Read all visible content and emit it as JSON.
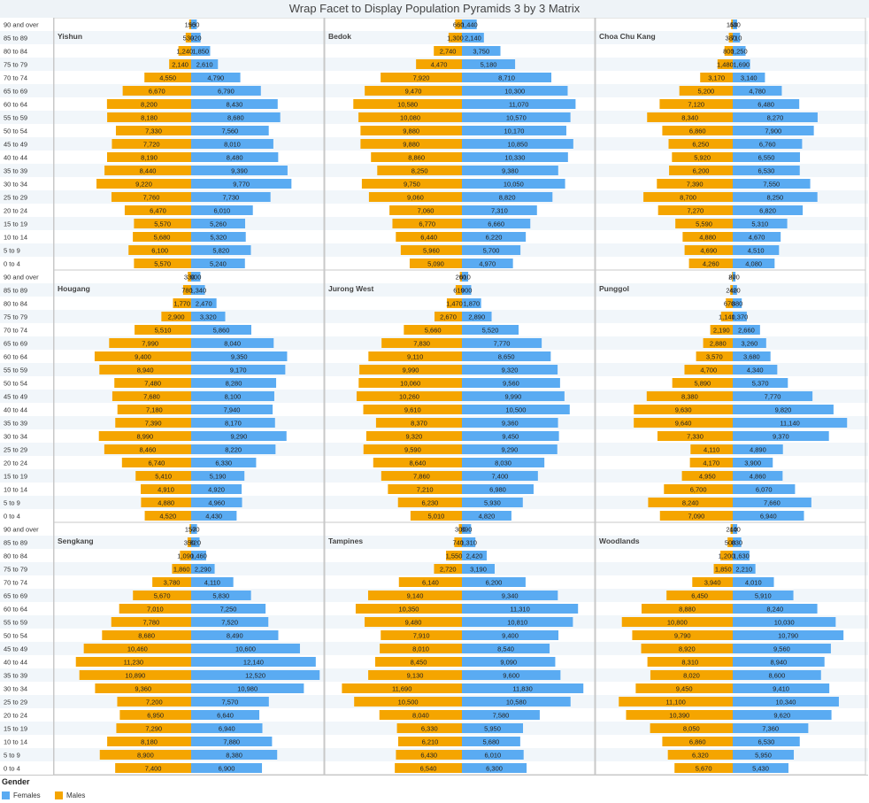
{
  "title": "Wrap Facet to Display Population Pyramids 3 by 3 Matrix",
  "chart_data": {
    "type": "bar",
    "orientation": "horizontal-diverging",
    "age_groups": [
      "90 and over",
      "85 to 89",
      "80 to 84",
      "75 to 79",
      "70 to 74",
      "65 to 69",
      "60 to 64",
      "55 to 59",
      "50 to 54",
      "45 to 49",
      "40 to 44",
      "35 to 39",
      "30 to 34",
      "25 to 29",
      "20 to 24",
      "15 to 19",
      "10 to 14",
      "5 to 9",
      "0 to 4"
    ],
    "colors": {
      "Females": "#5aabf2",
      "Males": "#f5a500"
    },
    "facets": [
      {
        "name": "Yishun",
        "males": [
          190,
          530,
          1240,
          2140,
          4550,
          6670,
          8200,
          8180,
          7330,
          7720,
          8190,
          8440,
          9220,
          7760,
          6470,
          5570,
          5680,
          6100,
          5570
        ],
        "females": [
          550,
          920,
          1850,
          2610,
          4790,
          6790,
          8430,
          8680,
          7560,
          8010,
          8480,
          9390,
          9770,
          7730,
          6010,
          5260,
          5320,
          5820,
          5240
        ]
      },
      {
        "name": "Bedok",
        "males": [
          660,
          1300,
          2740,
          4470,
          7920,
          9470,
          10580,
          10080,
          9880,
          9880,
          8860,
          8250,
          9750,
          9060,
          7060,
          6770,
          6440,
          5960,
          5090
        ],
        "females": [
          1440,
          2140,
          3750,
          5180,
          8710,
          10300,
          11070,
          10570,
          10170,
          10850,
          10330,
          9380,
          10050,
          8820,
          7310,
          6660,
          6220,
          5700,
          4970
        ]
      },
      {
        "name": "Choa Chu Kang",
        "males": [
          150,
          380,
          800,
          1480,
          3170,
          5200,
          7120,
          8340,
          6860,
          6250,
          5920,
          6200,
          7390,
          8700,
          7270,
          5590,
          4880,
          4690,
          4260
        ],
        "females": [
          430,
          710,
          1250,
          1690,
          3140,
          4780,
          6480,
          8270,
          7900,
          6760,
          6550,
          6530,
          7550,
          8250,
          6820,
          5310,
          4670,
          4510,
          4080
        ]
      },
      {
        "name": "Hougang",
        "males": [
          330,
          780,
          1770,
          2900,
          5510,
          7990,
          9400,
          8940,
          7480,
          7680,
          7180,
          7390,
          8990,
          8460,
          6740,
          5410,
          4910,
          4880,
          4520
        ],
        "females": [
          900,
          1340,
          2470,
          3320,
          5860,
          8040,
          9350,
          9170,
          8280,
          8100,
          7940,
          8170,
          9290,
          8220,
          6330,
          5190,
          4920,
          4960,
          4430
        ]
      },
      {
        "name": "Jurong West",
        "males": [
          200,
          610,
          1470,
          2670,
          5660,
          7830,
          9110,
          9990,
          10060,
          10260,
          9610,
          8370,
          9320,
          9590,
          8640,
          7860,
          7210,
          6230,
          5010
        ],
        "females": [
          610,
          900,
          1870,
          2890,
          5520,
          7770,
          8650,
          9320,
          9560,
          9990,
          10500,
          9360,
          9450,
          9290,
          8030,
          7400,
          6980,
          5930,
          4820
        ]
      },
      {
        "name": "Punggol",
        "males": [
          80,
          240,
          670,
          1140,
          2190,
          2880,
          3570,
          4700,
          5890,
          8380,
          9630,
          9640,
          7330,
          4110,
          4170,
          4950,
          6700,
          8240,
          7090
        ],
        "females": [
          270,
          420,
          880,
          1370,
          2660,
          3260,
          3680,
          4340,
          5370,
          7770,
          9820,
          11140,
          9370,
          4890,
          3900,
          4860,
          6070,
          7660,
          6940
        ]
      },
      {
        "name": "Sengkang",
        "males": [
          150,
          350,
          1090,
          1860,
          3780,
          5670,
          7010,
          7780,
          8680,
          10460,
          11230,
          10890,
          9360,
          7200,
          6950,
          7290,
          8180,
          8900,
          7400
        ],
        "females": [
          570,
          820,
          1460,
          2290,
          4110,
          5830,
          7250,
          7520,
          8490,
          10600,
          12140,
          12520,
          10980,
          7570,
          6640,
          6940,
          7880,
          8380,
          6900
        ]
      },
      {
        "name": "Tampines",
        "males": [
          300,
          740,
          1550,
          2720,
          6140,
          9140,
          10350,
          9480,
          7910,
          8010,
          8450,
          9130,
          11690,
          10500,
          8040,
          6330,
          6210,
          6430,
          6540
        ],
        "females": [
          890,
          1310,
          2420,
          3190,
          6200,
          9340,
          11310,
          10810,
          9400,
          8540,
          9090,
          9600,
          11830,
          10580,
          7580,
          5950,
          5680,
          6010,
          6300
        ]
      },
      {
        "name": "Woodlands",
        "males": [
          210,
          500,
          1200,
          1850,
          3940,
          6450,
          8880,
          10800,
          9790,
          8920,
          8310,
          8020,
          9450,
          11100,
          10390,
          8050,
          6860,
          6320,
          5670
        ],
        "females": [
          440,
          830,
          1630,
          2210,
          4010,
          5910,
          8240,
          10030,
          10790,
          9560,
          8940,
          8600,
          9410,
          10340,
          9620,
          7360,
          6530,
          5950,
          5430
        ]
      }
    ]
  },
  "legend": {
    "title": "Gender",
    "items": [
      {
        "label": "Females",
        "color": "#5aabf2"
      },
      {
        "label": "Males",
        "color": "#f5a500"
      }
    ]
  }
}
